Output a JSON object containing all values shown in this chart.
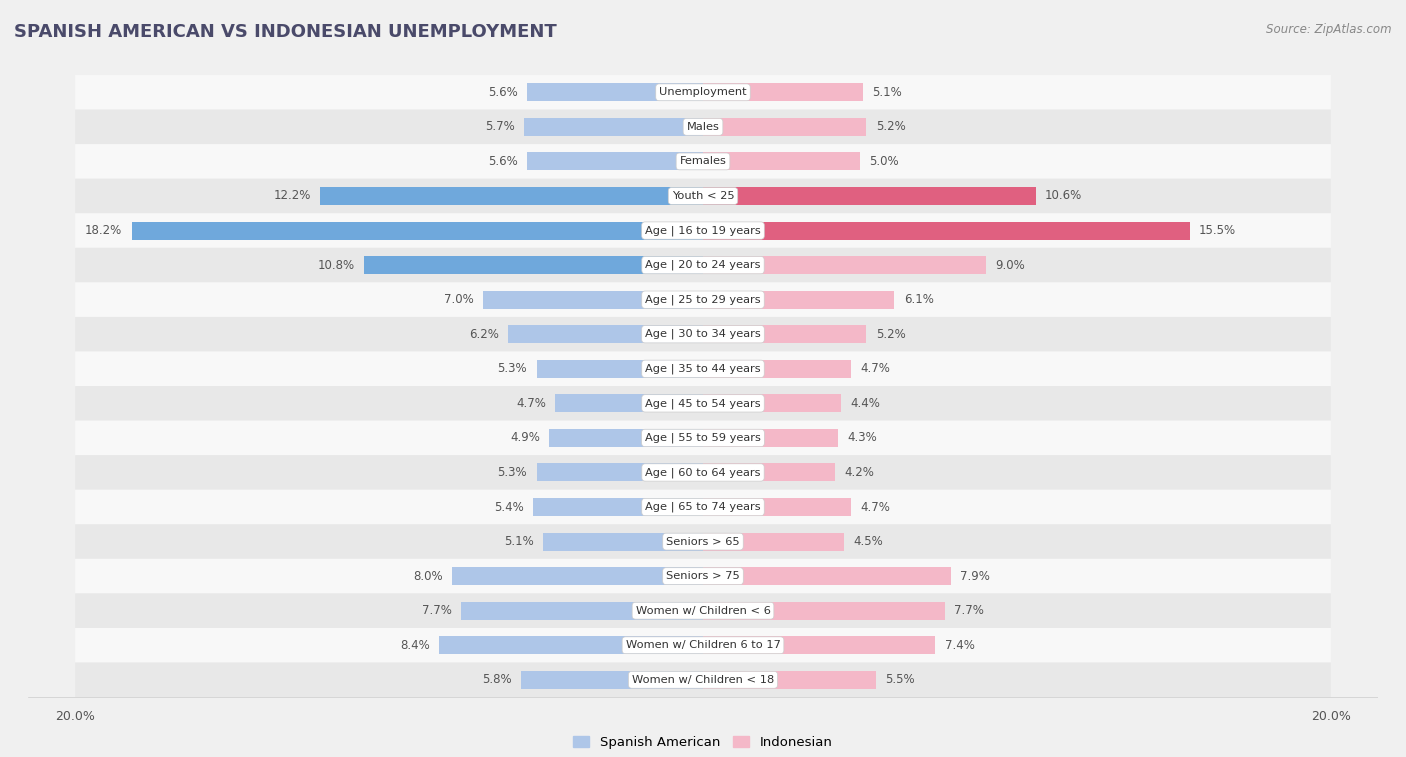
{
  "title": "SPANISH AMERICAN VS INDONESIAN UNEMPLOYMENT",
  "source": "Source: ZipAtlas.com",
  "categories": [
    "Unemployment",
    "Males",
    "Females",
    "Youth < 25",
    "Age | 16 to 19 years",
    "Age | 20 to 24 years",
    "Age | 25 to 29 years",
    "Age | 30 to 34 years",
    "Age | 35 to 44 years",
    "Age | 45 to 54 years",
    "Age | 55 to 59 years",
    "Age | 60 to 64 years",
    "Age | 65 to 74 years",
    "Seniors > 65",
    "Seniors > 75",
    "Women w/ Children < 6",
    "Women w/ Children 6 to 17",
    "Women w/ Children < 18"
  ],
  "spanish_american": [
    5.6,
    5.7,
    5.6,
    12.2,
    18.2,
    10.8,
    7.0,
    6.2,
    5.3,
    4.7,
    4.9,
    5.3,
    5.4,
    5.1,
    8.0,
    7.7,
    8.4,
    5.8
  ],
  "indonesian": [
    5.1,
    5.2,
    5.0,
    10.6,
    15.5,
    9.0,
    6.1,
    5.2,
    4.7,
    4.4,
    4.3,
    4.2,
    4.7,
    4.5,
    7.9,
    7.7,
    7.4,
    5.5
  ],
  "spanish_color_normal": "#aec6e8",
  "spanish_color_highlight": "#6fa8dc",
  "indonesian_color_normal": "#f4b8c8",
  "indonesian_color_highlight": "#e06080",
  "background_color": "#f0f0f0",
  "row_bg_even": "#e8e8e8",
  "row_bg_odd": "#f8f8f8",
  "max_val": 20.0,
  "legend_spanish": "Spanish American",
  "legend_indonesian": "Indonesian",
  "title_color": "#4a4a6a",
  "source_color": "#888888",
  "label_color": "#555555",
  "value_color": "#555555"
}
